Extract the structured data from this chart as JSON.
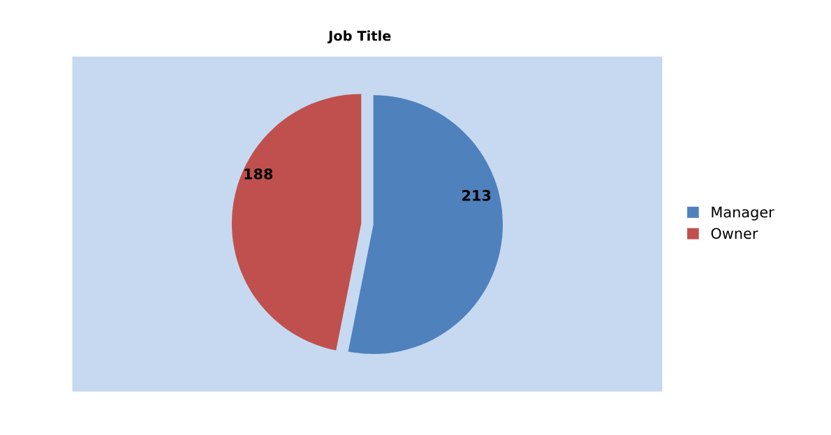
{
  "chart_data": {
    "type": "pie",
    "title": "Job Title",
    "categories": [
      "Manager",
      "Owner"
    ],
    "values": [
      213,
      188
    ],
    "colors": [
      "#4f81bd",
      "#c0504d"
    ],
    "data_labels": true,
    "legend": "right"
  }
}
